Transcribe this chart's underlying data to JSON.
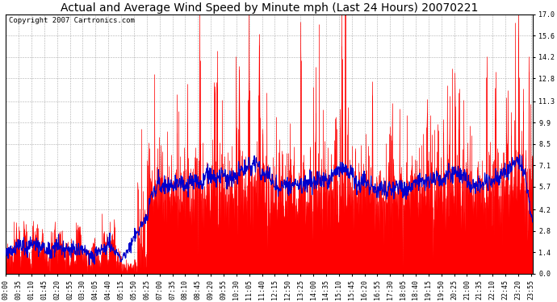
{
  "title": "Actual and Average Wind Speed by Minute mph (Last 24 Hours) 20070221",
  "copyright": "Copyright 2007 Cartronics.com",
  "bar_color": "#FF0000",
  "line_color": "#0000CC",
  "background_color": "#FFFFFF",
  "plot_bg_color": "#FFFFFF",
  "grid_color": "#999999",
  "yticks": [
    0.0,
    1.4,
    2.8,
    4.2,
    5.7,
    7.1,
    8.5,
    9.9,
    11.3,
    12.8,
    14.2,
    15.6,
    17.0
  ],
  "ylim": [
    0.0,
    17.0
  ],
  "title_fontsize": 10,
  "copyright_fontsize": 6.5,
  "tick_fontsize": 6,
  "n_minutes": 1440,
  "figsize": [
    6.9,
    3.75
  ],
  "dpi": 100
}
